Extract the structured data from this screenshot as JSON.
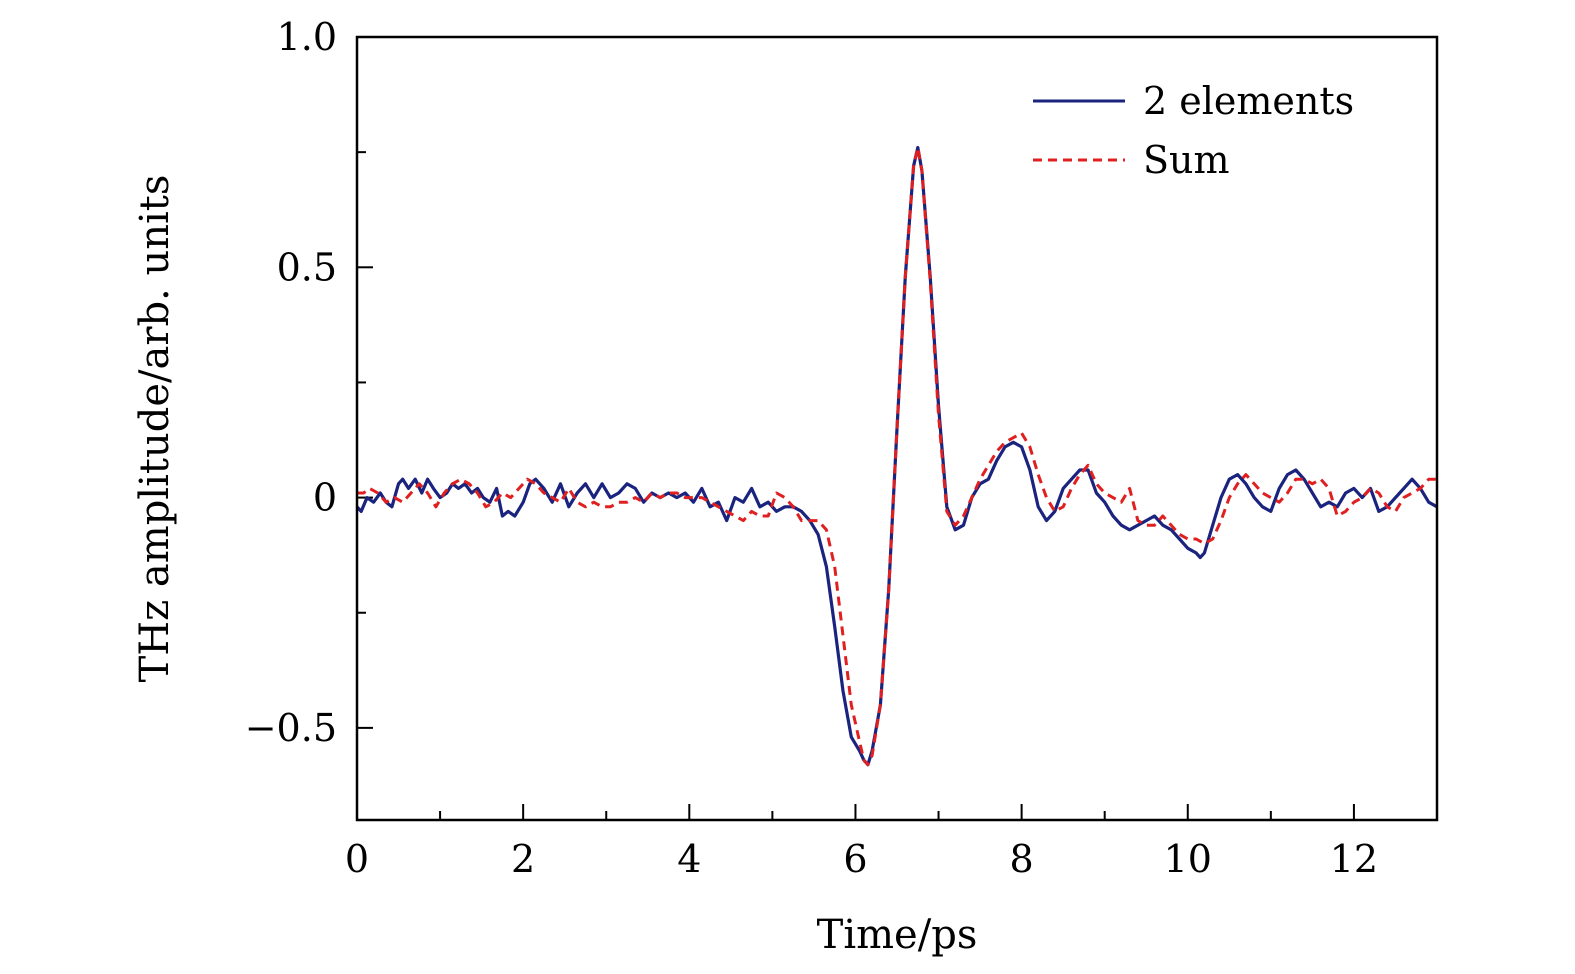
{
  "chart_data": {
    "type": "line",
    "xlabel": "Time/ps",
    "ylabel": "THz amplitude/arb. units",
    "xlim": [
      0,
      13
    ],
    "ylim": [
      -0.7,
      1.0
    ],
    "x_ticks": [
      0,
      2,
      4,
      6,
      8,
      10,
      12
    ],
    "x_tick_labels": [
      "0",
      "2",
      "4",
      "6",
      "8",
      "10",
      "12"
    ],
    "x_minor_ticks": [
      1,
      3,
      5,
      7,
      9,
      11
    ],
    "y_ticks": [
      -0.5,
      0,
      0.5,
      1.0
    ],
    "y_tick_labels": [
      "−0.5",
      "0",
      "0.5",
      "1.0"
    ],
    "y_minor_ticks": [
      -0.25,
      0.25,
      0.75
    ],
    "grid": false,
    "legend_position": "top-right",
    "series": [
      {
        "name": "2 elements",
        "color": "#1a237e",
        "dash": "solid",
        "x": [
          0,
          0.05,
          0.12,
          0.2,
          0.28,
          0.35,
          0.42,
          0.5,
          0.55,
          0.62,
          0.7,
          0.78,
          0.85,
          0.92,
          1.0,
          1.08,
          1.15,
          1.22,
          1.3,
          1.38,
          1.45,
          1.52,
          1.6,
          1.68,
          1.75,
          1.82,
          1.9,
          2.0,
          2.08,
          2.15,
          2.25,
          2.35,
          2.45,
          2.55,
          2.65,
          2.75,
          2.85,
          2.95,
          3.05,
          3.15,
          3.25,
          3.35,
          3.45,
          3.55,
          3.65,
          3.75,
          3.85,
          3.95,
          4.05,
          4.15,
          4.25,
          4.35,
          4.45,
          4.55,
          4.65,
          4.75,
          4.85,
          4.95,
          5.05,
          5.15,
          5.25,
          5.35,
          5.45,
          5.55,
          5.65,
          5.75,
          5.85,
          5.95,
          6.05,
          6.1,
          6.15,
          6.2,
          6.3,
          6.4,
          6.5,
          6.6,
          6.7,
          6.75,
          6.8,
          6.9,
          7.0,
          7.1,
          7.2,
          7.3,
          7.4,
          7.5,
          7.6,
          7.7,
          7.8,
          7.9,
          8.0,
          8.1,
          8.2,
          8.3,
          8.4,
          8.5,
          8.6,
          8.7,
          8.8,
          8.9,
          9.0,
          9.1,
          9.2,
          9.3,
          9.4,
          9.5,
          9.6,
          9.7,
          9.8,
          9.9,
          10.0,
          10.1,
          10.15,
          10.2,
          10.3,
          10.4,
          10.5,
          10.6,
          10.7,
          10.8,
          10.9,
          11.0,
          11.1,
          11.2,
          11.3,
          11.4,
          11.5,
          11.6,
          11.7,
          11.8,
          11.9,
          12.0,
          12.1,
          12.2,
          12.3,
          12.4,
          12.5,
          12.6,
          12.7,
          12.8,
          12.9,
          13.0
        ],
        "y": [
          -0.02,
          -0.03,
          0.0,
          -0.01,
          0.01,
          -0.01,
          -0.02,
          0.03,
          0.04,
          0.02,
          0.04,
          0.01,
          0.04,
          0.02,
          0.0,
          0.01,
          0.03,
          0.02,
          0.03,
          0.01,
          0.02,
          0.0,
          -0.01,
          0.02,
          -0.04,
          -0.03,
          -0.04,
          -0.01,
          0.03,
          0.04,
          0.02,
          -0.01,
          0.03,
          -0.02,
          0.01,
          0.03,
          0.0,
          0.03,
          0.0,
          0.01,
          0.03,
          0.02,
          -0.01,
          0.01,
          0.0,
          0.01,
          0.0,
          0.01,
          -0.01,
          0.02,
          -0.02,
          -0.01,
          -0.05,
          0.0,
          -0.01,
          0.02,
          -0.02,
          -0.01,
          -0.03,
          -0.02,
          -0.02,
          -0.03,
          -0.05,
          -0.08,
          -0.15,
          -0.28,
          -0.42,
          -0.52,
          -0.55,
          -0.57,
          -0.58,
          -0.55,
          -0.45,
          -0.2,
          0.15,
          0.48,
          0.72,
          0.76,
          0.71,
          0.48,
          0.2,
          -0.02,
          -0.07,
          -0.06,
          0.0,
          0.03,
          0.04,
          0.08,
          0.11,
          0.12,
          0.11,
          0.06,
          -0.02,
          -0.05,
          -0.03,
          0.02,
          0.04,
          0.06,
          0.06,
          0.01,
          -0.01,
          -0.04,
          -0.06,
          -0.07,
          -0.06,
          -0.05,
          -0.04,
          -0.06,
          -0.07,
          -0.09,
          -0.11,
          -0.12,
          -0.13,
          -0.12,
          -0.06,
          0.0,
          0.04,
          0.05,
          0.03,
          0.0,
          -0.02,
          -0.03,
          0.02,
          0.05,
          0.06,
          0.04,
          0.01,
          -0.02,
          -0.01,
          -0.02,
          0.01,
          0.02,
          0.0,
          0.02,
          -0.03,
          -0.02,
          0.0,
          0.02,
          0.04,
          0.02,
          -0.01,
          -0.02
        ]
      },
      {
        "name": "Sum",
        "color": "#e02020",
        "dash": "dashed",
        "x": [
          0,
          0.08,
          0.15,
          0.25,
          0.35,
          0.45,
          0.55,
          0.65,
          0.75,
          0.85,
          0.95,
          1.05,
          1.15,
          1.25,
          1.35,
          1.45,
          1.55,
          1.65,
          1.75,
          1.85,
          1.95,
          2.05,
          2.15,
          2.25,
          2.35,
          2.45,
          2.55,
          2.65,
          2.75,
          2.85,
          2.95,
          3.05,
          3.15,
          3.25,
          3.35,
          3.45,
          3.55,
          3.65,
          3.75,
          3.85,
          3.95,
          4.05,
          4.15,
          4.25,
          4.35,
          4.45,
          4.55,
          4.65,
          4.75,
          4.85,
          4.95,
          5.05,
          5.15,
          5.25,
          5.35,
          5.45,
          5.55,
          5.65,
          5.75,
          5.85,
          5.95,
          6.05,
          6.1,
          6.15,
          6.2,
          6.3,
          6.4,
          6.5,
          6.6,
          6.7,
          6.75,
          6.8,
          6.9,
          7.0,
          7.1,
          7.2,
          7.3,
          7.4,
          7.5,
          7.6,
          7.7,
          7.8,
          7.9,
          8.0,
          8.1,
          8.2,
          8.3,
          8.4,
          8.5,
          8.6,
          8.7,
          8.8,
          8.9,
          9.0,
          9.1,
          9.2,
          9.3,
          9.4,
          9.5,
          9.6,
          9.7,
          9.8,
          9.9,
          10.0,
          10.1,
          10.2,
          10.3,
          10.4,
          10.5,
          10.6,
          10.7,
          10.8,
          10.9,
          11.0,
          11.1,
          11.2,
          11.3,
          11.4,
          11.5,
          11.6,
          11.7,
          11.8,
          11.9,
          12.0,
          12.1,
          12.2,
          12.3,
          12.4,
          12.5,
          12.6,
          12.7,
          12.8,
          12.9,
          13.0
        ],
        "y": [
          0.01,
          0.01,
          0.02,
          0.01,
          -0.01,
          0.0,
          -0.01,
          0.01,
          0.03,
          0.01,
          -0.02,
          0.01,
          0.03,
          0.04,
          0.03,
          0.01,
          -0.02,
          -0.01,
          0.01,
          0.0,
          0.02,
          0.04,
          0.03,
          0.01,
          0.0,
          -0.01,
          0.02,
          -0.01,
          -0.02,
          -0.01,
          -0.02,
          -0.02,
          -0.01,
          -0.01,
          0.0,
          -0.01,
          0.01,
          0.0,
          0.01,
          0.01,
          0.0,
          0.0,
          0.0,
          -0.01,
          -0.02,
          -0.03,
          -0.04,
          -0.05,
          -0.03,
          -0.04,
          -0.04,
          0.01,
          0.0,
          -0.02,
          -0.05,
          -0.05,
          -0.05,
          -0.07,
          -0.15,
          -0.3,
          -0.45,
          -0.53,
          -0.57,
          -0.58,
          -0.56,
          -0.45,
          -0.2,
          0.15,
          0.48,
          0.72,
          0.76,
          0.71,
          0.47,
          0.18,
          -0.03,
          -0.06,
          -0.04,
          0.0,
          0.04,
          0.07,
          0.1,
          0.12,
          0.13,
          0.14,
          0.11,
          0.05,
          0.0,
          -0.03,
          -0.02,
          0.02,
          0.05,
          0.07,
          0.03,
          0.01,
          0.0,
          -0.01,
          0.02,
          -0.05,
          -0.06,
          -0.06,
          -0.04,
          -0.06,
          -0.08,
          -0.09,
          -0.09,
          -0.1,
          -0.09,
          -0.05,
          0.0,
          0.03,
          0.05,
          0.03,
          0.01,
          0.0,
          -0.01,
          0.01,
          0.04,
          0.04,
          0.03,
          0.04,
          0.02,
          -0.04,
          -0.03,
          -0.01,
          0.0,
          0.02,
          0.01,
          -0.02,
          -0.03,
          0.0,
          0.01,
          0.02,
          0.04,
          0.04
        ]
      }
    ]
  }
}
